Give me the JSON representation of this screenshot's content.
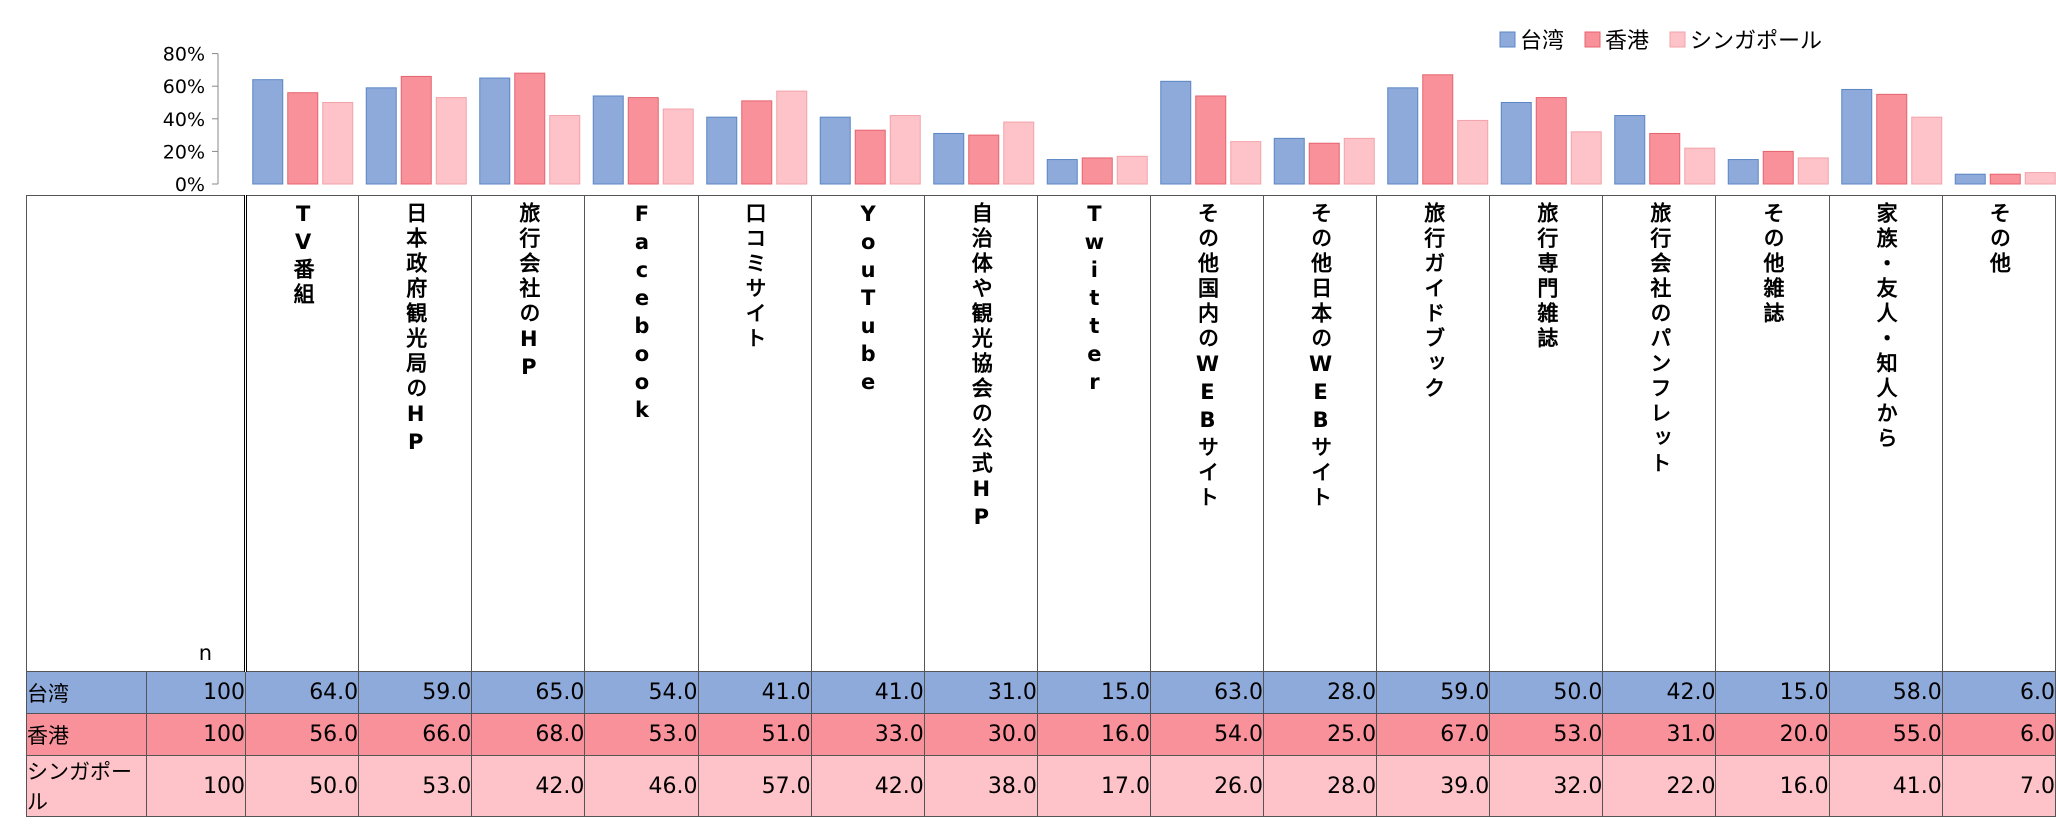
{
  "chart_data": {
    "type": "bar",
    "categories": [
      "TV番組",
      "日本政府観光局のHP",
      "旅行会社のHP",
      "Facebook",
      "口コミサイト",
      "YouTube",
      "自治体や観光協会の公式HP",
      "Twitter",
      "その他国内のWEBサイト",
      "その他日本のWEBサイト",
      "旅行ガイドブック",
      "旅行専門雑誌",
      "旅行会社のパンフレット",
      "その他雑誌",
      "家族・友人・知人から",
      "その他"
    ],
    "series": [
      {
        "name": "台湾",
        "n": "100",
        "color": "#8eaadb",
        "values": [
          64.0,
          59.0,
          65.0,
          54.0,
          41.0,
          41.0,
          31.0,
          15.0,
          63.0,
          28.0,
          59.0,
          50.0,
          42.0,
          15.0,
          58.0,
          6.0
        ],
        "labels": [
          "64.0",
          "59.0",
          "65.0",
          "54.0",
          "41.0",
          "41.0",
          "31.0",
          "15.0",
          "63.0",
          "28.0",
          "59.0",
          "50.0",
          "42.0",
          "15.0",
          "58.0",
          "6.0"
        ]
      },
      {
        "name": "香港",
        "n": "100",
        "color": "#f9919a",
        "values": [
          56.0,
          66.0,
          68.0,
          53.0,
          51.0,
          33.0,
          30.0,
          16.0,
          54.0,
          25.0,
          67.0,
          53.0,
          31.0,
          20.0,
          55.0,
          6.0
        ],
        "labels": [
          "56.0",
          "66.0",
          "68.0",
          "53.0",
          "51.0",
          "33.0",
          "30.0",
          "16.0",
          "54.0",
          "25.0",
          "67.0",
          "53.0",
          "31.0",
          "20.0",
          "55.0",
          "6.0"
        ]
      },
      {
        "name": "シンガポール",
        "n": "100",
        "color": "#fdc3c8",
        "values": [
          50.0,
          53.0,
          42.0,
          46.0,
          57.0,
          42.0,
          38.0,
          17.0,
          26.0,
          28.0,
          39.0,
          32.0,
          22.0,
          16.0,
          41.0,
          7.0
        ],
        "labels": [
          "50.0",
          "53.0",
          "42.0",
          "46.0",
          "57.0",
          "42.0",
          "38.0",
          "17.0",
          "26.0",
          "28.0",
          "39.0",
          "32.0",
          "22.0",
          "16.0",
          "41.0",
          "7.0"
        ]
      }
    ],
    "yticks": [
      "0%",
      "20%",
      "40%",
      "60%",
      "80%"
    ],
    "ylim": [
      0,
      80
    ],
    "legend_position": "top-right",
    "n_label": "n"
  }
}
